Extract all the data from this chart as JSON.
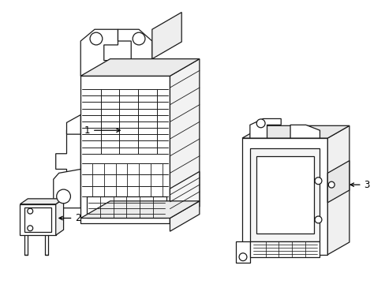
{
  "background_color": "#ffffff",
  "line_color": "#1a1a1a",
  "line_width": 0.9,
  "label_color": "#000000",
  "label_fontsize": 8.5,
  "arrow_color": "#000000",
  "figsize": [
    4.89,
    3.6
  ],
  "dpi": 100
}
